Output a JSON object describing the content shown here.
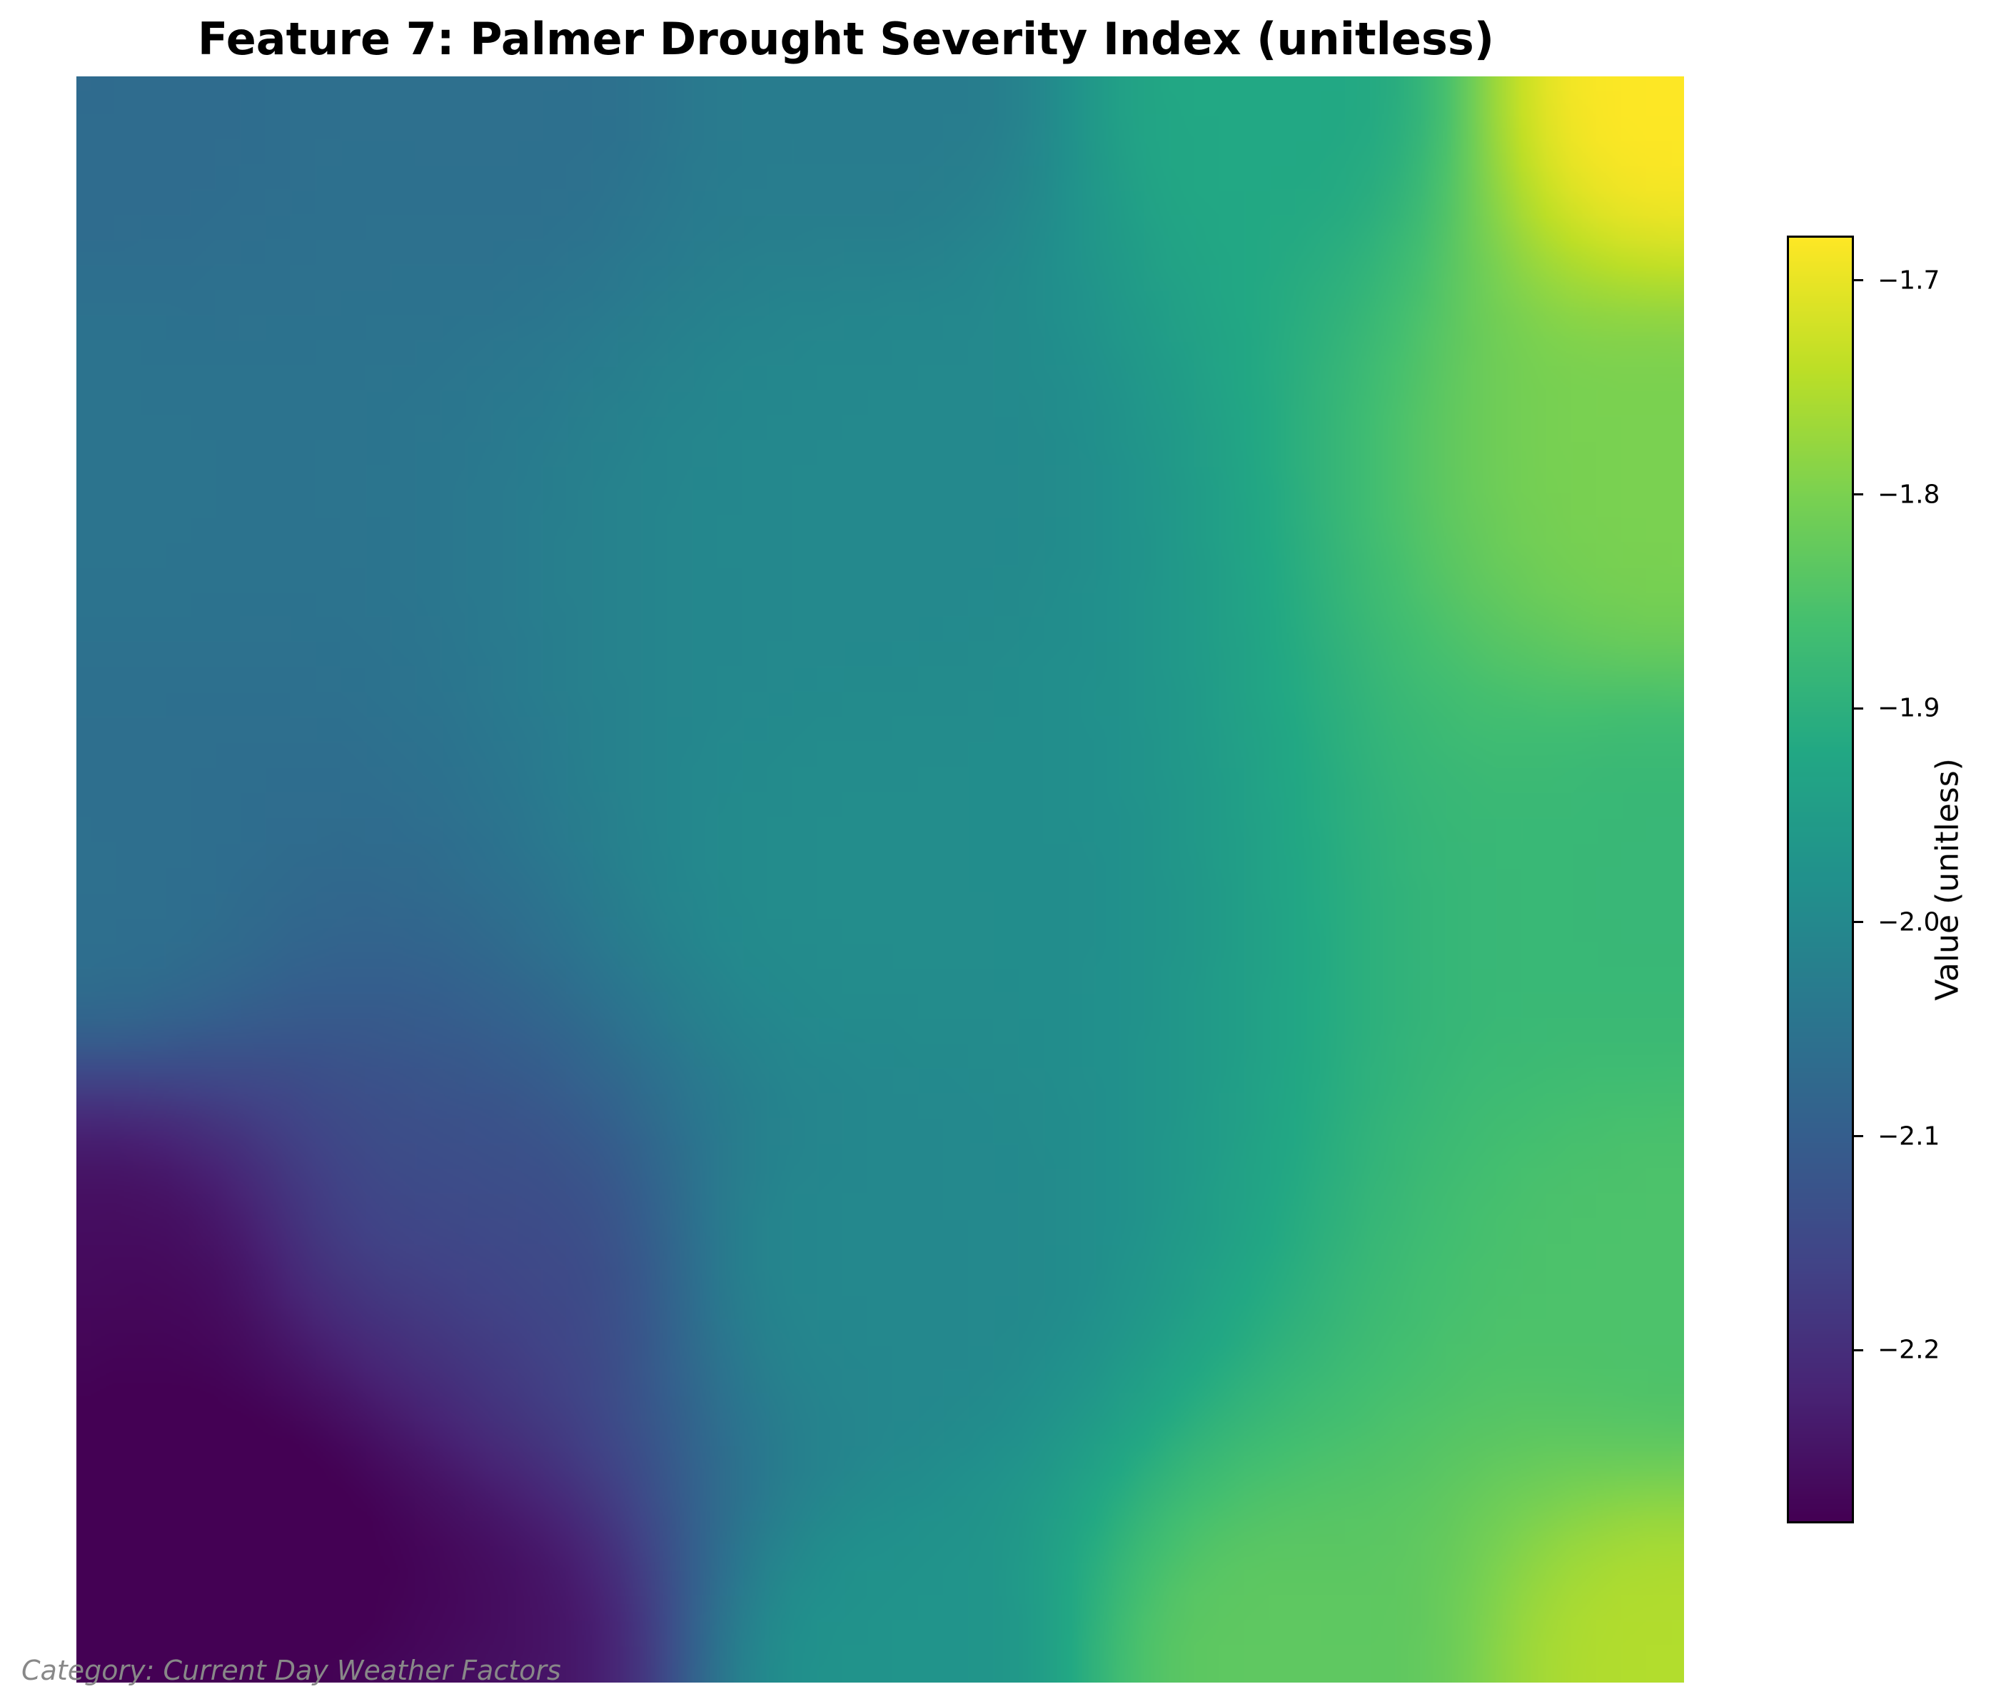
{
  "chart_data": {
    "type": "heatmap",
    "title": "Feature 7: Palmer Drought Severity Index (unitless)",
    "colormap": "viridis",
    "grid_size": [
      64,
      64
    ],
    "value_range": [
      -2.28,
      -1.68
    ],
    "field_model": {
      "description": "Smooth 2D field; values sampled from key anchors (row 0 = top, col 0 = left, normalized 0-1)",
      "anchors": [
        {
          "x": 0.0,
          "y": 0.0,
          "value": -2.07
        },
        {
          "x": 0.25,
          "y": 0.0,
          "value": -2.06
        },
        {
          "x": 0.5,
          "y": 0.0,
          "value": -2.03
        },
        {
          "x": 0.75,
          "y": 0.0,
          "value": -1.92
        },
        {
          "x": 1.0,
          "y": 0.0,
          "value": -1.68
        },
        {
          "x": 0.0,
          "y": 0.25,
          "value": -2.05
        },
        {
          "x": 0.5,
          "y": 0.25,
          "value": -2.0
        },
        {
          "x": 1.0,
          "y": 0.25,
          "value": -1.8
        },
        {
          "x": 0.0,
          "y": 0.5,
          "value": -2.06
        },
        {
          "x": 0.5,
          "y": 0.5,
          "value": -1.99
        },
        {
          "x": 1.0,
          "y": 0.5,
          "value": -1.88
        },
        {
          "x": 0.0,
          "y": 0.75,
          "value": -2.25
        },
        {
          "x": 0.25,
          "y": 0.75,
          "value": -2.13
        },
        {
          "x": 0.5,
          "y": 0.75,
          "value": -2.0
        },
        {
          "x": 1.0,
          "y": 0.75,
          "value": -1.85
        },
        {
          "x": 0.0,
          "y": 1.0,
          "value": -2.28
        },
        {
          "x": 0.25,
          "y": 1.0,
          "value": -2.23
        },
        {
          "x": 0.5,
          "y": 1.0,
          "value": -1.97
        },
        {
          "x": 0.75,
          "y": 1.0,
          "value": -1.83
        },
        {
          "x": 1.0,
          "y": 1.0,
          "value": -1.75
        }
      ]
    },
    "colorbar": {
      "label": "Value (unitless)",
      "ticks": [
        -1.7,
        -1.8,
        -1.9,
        -2.0,
        -2.1,
        -2.2
      ],
      "tick_labels": [
        "−1.7",
        "−1.8",
        "−1.9",
        "−2.0",
        "−2.1",
        "−2.2"
      ],
      "min": -2.28,
      "max": -1.68
    },
    "annotation": "Category: Current Day Weather Factors",
    "xlabel": "",
    "ylabel": "",
    "axes_visible": false
  }
}
